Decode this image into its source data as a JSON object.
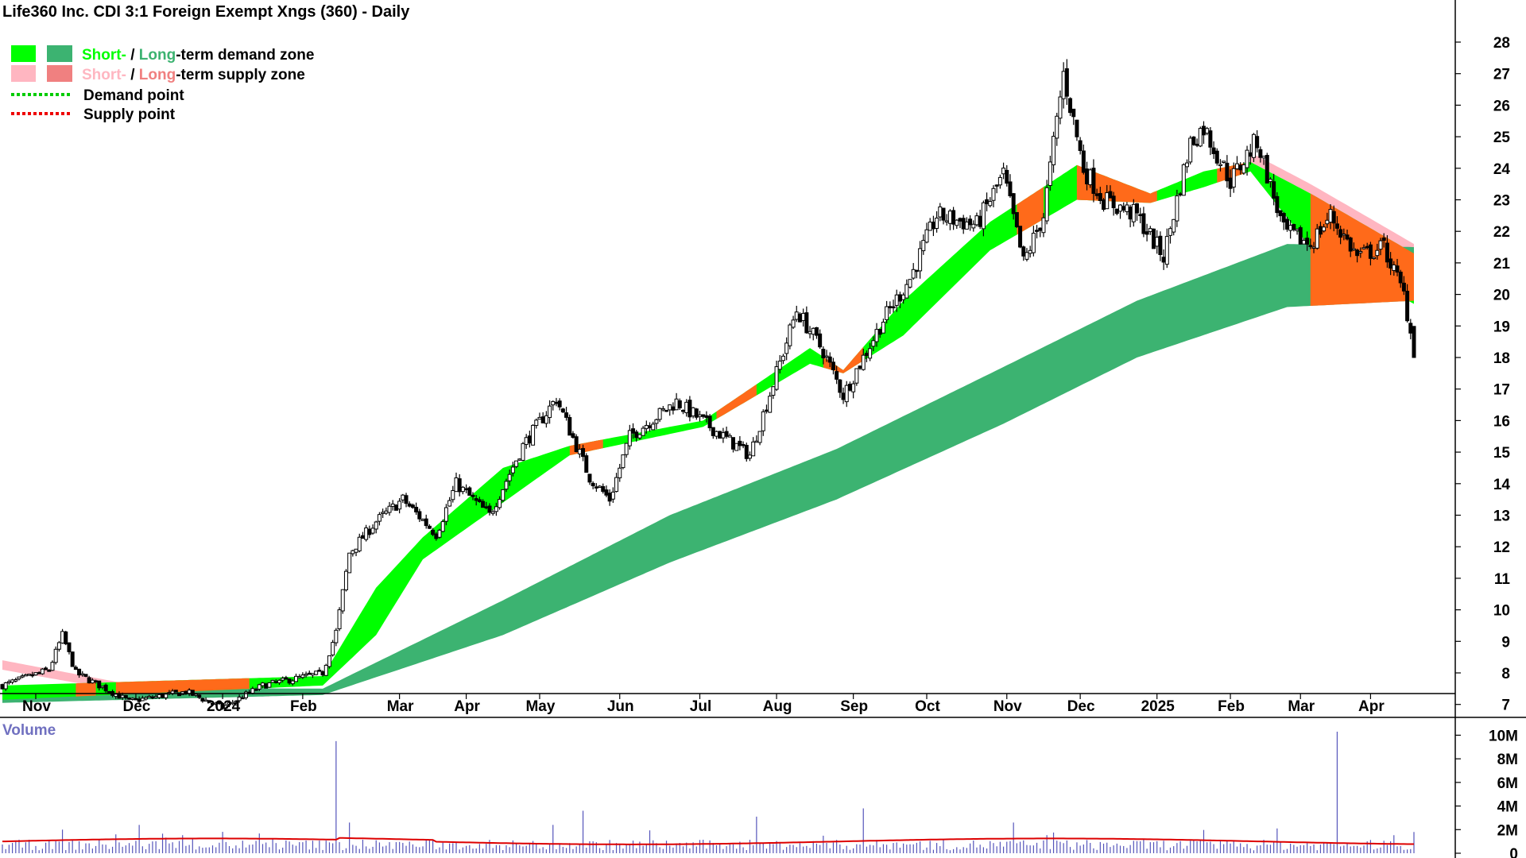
{
  "chart_data": {
    "type": "candlestick",
    "title": "Life360 Inc. CDI 3:1 Foreign Exempt Xngs (360) - Daily",
    "legend": {
      "placement": "top-left",
      "demand_zone": {
        "short": "Short-",
        "sep": " / ",
        "long": "Long",
        "suffix": "-term demand zone"
      },
      "supply_zone": {
        "short": "Short-",
        "sep": " / ",
        "long": "Long",
        "suffix": "-term supply zone"
      },
      "demand_point": "Demand point",
      "supply_point": "Supply point"
    },
    "colors": {
      "demand_short": "#00ff00",
      "demand_long": "#3cb371",
      "supply_short": "#ffb6c1",
      "supply_long": "#f08080",
      "supply_fill": "#ff6a1a",
      "demand_point": "#00cc00",
      "supply_point": "#ee0000",
      "volume_bars": "#5555bb",
      "volume_average": "#dd0000",
      "volume_label": "#7070c0"
    },
    "x_tick_labels": [
      "Nov",
      "Dec",
      "2024",
      "Feb",
      "Mar",
      "Apr",
      "May",
      "Jun",
      "Jul",
      "Aug",
      "Sep",
      "Oct",
      "Nov",
      "Dec",
      "2025",
      "Feb",
      "Mar",
      "Apr"
    ],
    "y_axis": {
      "min": 6,
      "max": 28.5,
      "ticks": [
        7,
        8,
        9,
        10,
        11,
        12,
        13,
        14,
        15,
        16,
        17,
        18,
        19,
        20,
        21,
        22,
        23,
        24,
        25,
        26,
        27,
        28
      ]
    },
    "price_anchors": [
      {
        "i": 0,
        "v": 7.6
      },
      {
        "i": 14,
        "v": 8.1
      },
      {
        "i": 18,
        "v": 9.2
      },
      {
        "i": 22,
        "v": 8.0
      },
      {
        "i": 38,
        "v": 7.1
      },
      {
        "i": 55,
        "v": 7.4
      },
      {
        "i": 66,
        "v": 6.9
      },
      {
        "i": 78,
        "v": 7.6
      },
      {
        "i": 96,
        "v": 8.0
      },
      {
        "i": 100,
        "v": 9.3
      },
      {
        "i": 104,
        "v": 11.8
      },
      {
        "i": 112,
        "v": 12.8
      },
      {
        "i": 120,
        "v": 13.5
      },
      {
        "i": 130,
        "v": 12.4
      },
      {
        "i": 136,
        "v": 14.0
      },
      {
        "i": 146,
        "v": 13.0
      },
      {
        "i": 156,
        "v": 15.2
      },
      {
        "i": 166,
        "v": 16.7
      },
      {
        "i": 176,
        "v": 14.2
      },
      {
        "i": 182,
        "v": 13.5
      },
      {
        "i": 188,
        "v": 15.5
      },
      {
        "i": 202,
        "v": 16.6
      },
      {
        "i": 216,
        "v": 15.5
      },
      {
        "i": 224,
        "v": 14.9
      },
      {
        "i": 232,
        "v": 17.5
      },
      {
        "i": 238,
        "v": 19.5
      },
      {
        "i": 246,
        "v": 18.2
      },
      {
        "i": 252,
        "v": 16.8
      },
      {
        "i": 264,
        "v": 19.2
      },
      {
        "i": 272,
        "v": 20.5
      },
      {
        "i": 280,
        "v": 22.5
      },
      {
        "i": 292,
        "v": 22.2
      },
      {
        "i": 300,
        "v": 23.8
      },
      {
        "i": 306,
        "v": 21.0
      },
      {
        "i": 312,
        "v": 22.5
      },
      {
        "i": 318,
        "v": 27.0
      },
      {
        "i": 324,
        "v": 24.0
      },
      {
        "i": 330,
        "v": 23.0
      },
      {
        "i": 340,
        "v": 22.5
      },
      {
        "i": 348,
        "v": 21.2
      },
      {
        "i": 356,
        "v": 24.8
      },
      {
        "i": 360,
        "v": 25.3
      },
      {
        "i": 368,
        "v": 23.6
      },
      {
        "i": 376,
        "v": 24.9
      },
      {
        "i": 384,
        "v": 22.0
      },
      {
        "i": 392,
        "v": 21.6
      },
      {
        "i": 398,
        "v": 22.5
      },
      {
        "i": 406,
        "v": 21.2
      },
      {
        "i": 414,
        "v": 21.5
      },
      {
        "i": 420,
        "v": 20.0
      },
      {
        "i": 423,
        "v": 18.2
      }
    ],
    "long_zone_upper": [
      {
        "i": 0,
        "v": 7.55
      },
      {
        "i": 96,
        "v": 7.5
      },
      {
        "i": 150,
        "v": 10.3
      },
      {
        "i": 200,
        "v": 13.0
      },
      {
        "i": 250,
        "v": 15.1
      },
      {
        "i": 300,
        "v": 17.7
      },
      {
        "i": 340,
        "v": 19.8
      },
      {
        "i": 385,
        "v": 21.6
      },
      {
        "i": 423,
        "v": 21.5
      }
    ],
    "long_zone_lower": [
      {
        "i": 0,
        "v": 7.05
      },
      {
        "i": 96,
        "v": 7.3
      },
      {
        "i": 150,
        "v": 9.2
      },
      {
        "i": 200,
        "v": 11.5
      },
      {
        "i": 250,
        "v": 13.5
      },
      {
        "i": 300,
        "v": 15.9
      },
      {
        "i": 340,
        "v": 18.0
      },
      {
        "i": 385,
        "v": 19.6
      },
      {
        "i": 423,
        "v": 19.8
      }
    ],
    "short_zone_upper": [
      {
        "i": 0,
        "v": 7.6
      },
      {
        "i": 96,
        "v": 7.9
      },
      {
        "i": 112,
        "v": 10.7
      },
      {
        "i": 126,
        "v": 12.3
      },
      {
        "i": 150,
        "v": 14.5
      },
      {
        "i": 170,
        "v": 15.2
      },
      {
        "i": 210,
        "v": 16.0
      },
      {
        "i": 242,
        "v": 18.3
      },
      {
        "i": 252,
        "v": 17.6
      },
      {
        "i": 270,
        "v": 19.8
      },
      {
        "i": 296,
        "v": 22.3
      },
      {
        "i": 322,
        "v": 24.1
      },
      {
        "i": 344,
        "v": 23.2
      },
      {
        "i": 360,
        "v": 23.9
      },
      {
        "i": 374,
        "v": 24.2
      },
      {
        "i": 392,
        "v": 23.2
      },
      {
        "i": 423,
        "v": 21.3
      }
    ],
    "short_zone_lower": [
      {
        "i": 0,
        "v": 7.15
      },
      {
        "i": 96,
        "v": 7.6
      },
      {
        "i": 112,
        "v": 9.2
      },
      {
        "i": 126,
        "v": 11.6
      },
      {
        "i": 150,
        "v": 13.4
      },
      {
        "i": 170,
        "v": 14.9
      },
      {
        "i": 210,
        "v": 15.8
      },
      {
        "i": 242,
        "v": 17.8
      },
      {
        "i": 252,
        "v": 17.5
      },
      {
        "i": 270,
        "v": 18.7
      },
      {
        "i": 296,
        "v": 21.4
      },
      {
        "i": 322,
        "v": 23.0
      },
      {
        "i": 344,
        "v": 22.9
      },
      {
        "i": 360,
        "v": 23.4
      },
      {
        "i": 374,
        "v": 23.9
      },
      {
        "i": 392,
        "v": 21.5
      },
      {
        "i": 423,
        "v": 19.7
      }
    ],
    "supply_segments": [
      [
        22,
        28
      ],
      [
        34,
        74
      ],
      [
        170,
        180
      ],
      [
        214,
        226
      ],
      [
        246,
        258
      ],
      [
        304,
        312
      ],
      [
        322,
        346
      ],
      [
        364,
        372
      ],
      [
        392,
        423
      ]
    ],
    "volume": {
      "label": "Volume",
      "y_ticks": [
        "10M",
        "8M",
        "6M",
        "4M",
        "2M",
        "0"
      ],
      "y_max": 10.5,
      "average": 1.0,
      "spikes": [
        {
          "i": 18,
          "v": 2.0
        },
        {
          "i": 34,
          "v": 1.6
        },
        {
          "i": 41,
          "v": 2.4
        },
        {
          "i": 100,
          "v": 9.5
        },
        {
          "i": 104,
          "v": 2.6
        },
        {
          "i": 174,
          "v": 3.6
        },
        {
          "i": 226,
          "v": 3.1
        },
        {
          "i": 258,
          "v": 3.8
        },
        {
          "i": 303,
          "v": 2.6
        },
        {
          "i": 382,
          "v": 2.1
        },
        {
          "i": 400,
          "v": 10.3
        },
        {
          "i": 423,
          "v": 1.8
        }
      ]
    }
  }
}
